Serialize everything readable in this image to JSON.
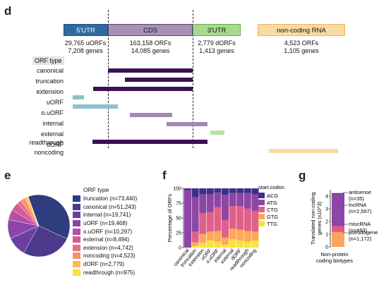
{
  "panel_d": {
    "letter": "d",
    "regions": [
      {
        "label": "5'UTR",
        "fill": "#2d6a9f",
        "text_color": "#ffffff"
      },
      {
        "label": "CDS",
        "fill": "#a792b6",
        "text_color": "#222222"
      },
      {
        "label": "3'UTR",
        "fill": "#a8d98f",
        "text_color": "#222222"
      },
      {
        "label": "non-coding RNA",
        "fill": "#fbd9a2",
        "text_color": "#222222"
      }
    ],
    "stats": [
      {
        "orfs": "29,765 uORFs",
        "genes": "7,208 genes"
      },
      {
        "orfs": "163,158 ORFs",
        "genes": "14,085 genes"
      },
      {
        "orfs": "2,779 dORFs",
        "genes": "1,413 genes"
      },
      {
        "orfs": "4,523 ORFs",
        "genes": "1,105 genes"
      }
    ],
    "orf_type_header": "ORF type",
    "orf_types": [
      {
        "label": "canonical",
        "color": "#3b1154"
      },
      {
        "label": "truncation",
        "color": "#3b1154"
      },
      {
        "label": "extension",
        "color": "#3b1154"
      },
      {
        "label": "uORF",
        "color": "#8cc2cc"
      },
      {
        "label": "o.uORF",
        "color": "#8cc2cc"
      },
      {
        "label": "internal",
        "color": "#a08ab5"
      },
      {
        "label": "external",
        "color": "#a08ab5"
      },
      {
        "label": "dORF",
        "color": "#b6e3a0"
      },
      {
        "label": "readthrough",
        "color": "#3b1154"
      },
      {
        "label": "noncoding",
        "color": "#fbd9a2"
      }
    ]
  },
  "panel_e": {
    "letter": "e",
    "legend_title": "ORF type",
    "chart_data": {
      "type": "pie",
      "legend_placement": "right",
      "slices": [
        {
          "label": "truncation (n=73,440)",
          "value": 73440,
          "color": "#2f3c7e"
        },
        {
          "label": "canonical (n=51,243)",
          "value": 51243,
          "color": "#4c3a8c"
        },
        {
          "label": "internal (n=19,741)",
          "value": 19741,
          "color": "#6b3fa0"
        },
        {
          "label": "uORF (n=19,468)",
          "value": 19468,
          "color": "#8e44a8"
        },
        {
          "label": "o.uORF (n=10,297)",
          "value": 10297,
          "color": "#b24ea6"
        },
        {
          "label": "external (n=8,494)",
          "value": 8494,
          "color": "#d45b95"
        },
        {
          "label": "extension (n=4,742)",
          "value": 4742,
          "color": "#ec7081"
        },
        {
          "label": "noncoding (n=4,523)",
          "value": 4523,
          "color": "#f8906a"
        },
        {
          "label": "dORF (n=2,779)",
          "value": 2779,
          "color": "#fdb858"
        },
        {
          "label": "readthrough (n=975)",
          "value": 975,
          "color": "#f7e03f"
        }
      ]
    }
  },
  "panel_f": {
    "letter": "f",
    "chart_data": {
      "type": "bar",
      "stacked": true,
      "ylabel": "Percentage of ORFs",
      "ylim": [
        0,
        100
      ],
      "yticks": [
        "0",
        "25",
        "50",
        "75",
        "100"
      ],
      "legend_title": "start.codon",
      "legend_placement": "right",
      "categories": [
        "canonical",
        "truncation",
        "extension",
        "uORF",
        "o.uORF",
        "internal",
        "external",
        "dORF",
        "readthrough",
        "noncoding"
      ],
      "series": [
        {
          "name": "TTG",
          "color": "#f9e23d",
          "values": [
            0,
            3,
            8,
            12,
            10,
            5,
            14,
            12,
            10,
            12
          ]
        },
        {
          "name": "GTG",
          "color": "#fda85a",
          "values": [
            0,
            6,
            15,
            15,
            18,
            12,
            18,
            18,
            18,
            15
          ]
        },
        {
          "name": "CTG",
          "color": "#e0608a",
          "values": [
            0,
            18,
            35,
            33,
            40,
            30,
            38,
            40,
            38,
            35
          ]
        },
        {
          "name": "ATG",
          "color": "#8e46a6",
          "values": [
            97,
            58,
            32,
            30,
            25,
            42,
            22,
            22,
            26,
            28
          ]
        },
        {
          "name": "ACG",
          "color": "#3d2f8a",
          "values": [
            3,
            15,
            10,
            10,
            7,
            11,
            8,
            8,
            8,
            10
          ]
        }
      ]
    }
  },
  "panel_g": {
    "letter": "g",
    "chart_data": {
      "type": "bar",
      "stacked": true,
      "ylabel": "Translated non-coding genes (x10^3)",
      "ylim": [
        0,
        4.5
      ],
      "yticks": [
        "0",
        "1",
        "2",
        "3",
        "4"
      ],
      "xlabel": "Non-protein coding biotypes",
      "categories": [
        ""
      ],
      "series": [
        {
          "name": "pseudogene (n=1,172)",
          "value": 1172,
          "color": "#fca35e"
        },
        {
          "name": "miscRNA (n=463)",
          "value": 463,
          "color": "#dd5a8e"
        },
        {
          "name": "lncRNA (n=2,567)",
          "value": 2567,
          "color": "#8e46a6"
        },
        {
          "name": "antisense (n=35)",
          "value": 35,
          "color": "#3d2f8a"
        }
      ]
    }
  }
}
